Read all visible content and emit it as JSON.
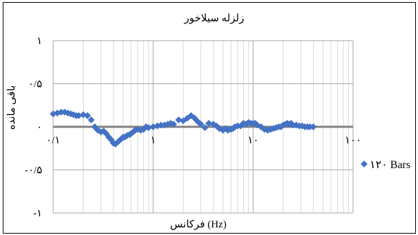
{
  "chart_data": {
    "type": "scatter",
    "title": "زلزله سیلاخور",
    "xlabel": "فرکانس (Hz)",
    "ylabel": "باقی مانده",
    "x_scale": "log",
    "xlim": [
      0.1,
      100
    ],
    "ylim": [
      -1,
      1
    ],
    "grid": true,
    "legend_position": "right",
    "x_tick_values": [
      0.1,
      1,
      10,
      100
    ],
    "x_tick_labels": [
      "۰/۱",
      "۱",
      "۱۰",
      "۱۰۰"
    ],
    "y_tick_values": [
      1,
      0.5,
      0,
      -0.5,
      -1
    ],
    "y_tick_labels": [
      "۱",
      "۰/۵",
      "۰",
      "-۰/۵",
      "-۱"
    ],
    "series": [
      {
        "name": "۱۲۰ Bars",
        "color": "#4472C4",
        "marker": "diamond",
        "x": [
          0.1,
          0.11,
          0.12,
          0.13,
          0.14,
          0.15,
          0.16,
          0.17,
          0.18,
          0.2,
          0.22,
          0.24,
          0.26,
          0.28,
          0.3,
          0.32,
          0.34,
          0.36,
          0.38,
          0.4,
          0.42,
          0.45,
          0.48,
          0.5,
          0.52,
          0.55,
          0.58,
          0.6,
          0.63,
          0.66,
          0.7,
          0.75,
          0.8,
          0.85,
          0.9,
          1,
          1.1,
          1.2,
          1.3,
          1.4,
          1.5,
          1.6,
          1.8,
          2,
          2.2,
          2.4,
          2.6,
          2.8,
          3,
          3.3,
          3.6,
          4,
          4.3,
          4.6,
          5,
          5.3,
          5.6,
          6,
          6.3,
          6.6,
          7,
          7.5,
          8,
          8.5,
          9,
          9.5,
          10,
          10.5,
          11,
          12,
          13,
          14,
          15,
          16,
          17,
          18,
          19,
          20,
          21,
          22,
          23,
          24,
          25,
          27,
          29,
          31,
          33,
          35,
          37,
          40
        ],
        "y": [
          0.15,
          0.16,
          0.17,
          0.17,
          0.16,
          0.15,
          0.14,
          0.13,
          0.13,
          0.14,
          0.13,
          0.08,
          0.0,
          -0.04,
          -0.06,
          -0.05,
          -0.08,
          -0.12,
          -0.15,
          -0.19,
          -0.2,
          -0.17,
          -0.14,
          -0.12,
          -0.12,
          -0.1,
          -0.09,
          -0.08,
          -0.06,
          -0.04,
          -0.03,
          -0.04,
          -0.03,
          0.0,
          -0.01,
          0.0,
          0.01,
          0.02,
          0.02,
          0.03,
          0.04,
          0.03,
          0.08,
          0.07,
          0.1,
          0.13,
          0.1,
          0.06,
          0.03,
          -0.01,
          0.04,
          0.03,
          0.01,
          -0.02,
          -0.04,
          -0.02,
          -0.04,
          -0.03,
          -0.02,
          0.0,
          0.01,
          0.01,
          0.04,
          0.03,
          0.05,
          0.04,
          0.04,
          0.04,
          0.02,
          0.0,
          -0.03,
          -0.04,
          -0.03,
          -0.02,
          -0.01,
          0.0,
          0.0,
          0.02,
          0.03,
          0.04,
          0.03,
          0.04,
          0.02,
          0.02,
          0.01,
          0.01,
          0.0,
          0.0,
          0.0,
          0.0
        ]
      }
    ]
  }
}
